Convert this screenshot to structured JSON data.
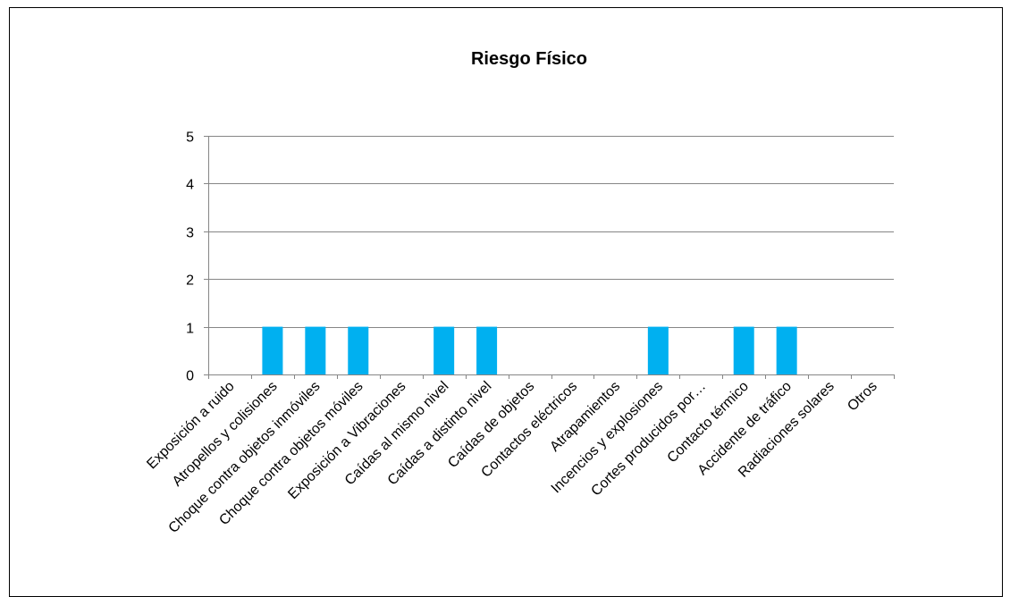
{
  "chart_data": {
    "type": "bar",
    "title": "Riesgo Físico",
    "xlabel": "",
    "ylabel": "",
    "ylim": [
      0,
      5
    ],
    "yticks": [
      0,
      1,
      2,
      3,
      4,
      5
    ],
    "grid": true,
    "legend": "none",
    "bar_color": "#00b0f0",
    "categories": [
      "Exposición a ruido",
      "Atropellos y colisiones",
      "Choque contra objetos inmóviles",
      "Choque contra objetos móviles",
      "Exposición a Vibraciones",
      "Caídas al mismo nivel",
      "Caídas a distinto nivel",
      "Caídas de objetos",
      "Contactos eléctricos",
      "Atrapamientos",
      "Incencios y explosiones",
      "Cortes producidos por…",
      "Contacto térmico",
      "Accidente de tráfico",
      "Radiaciones solares",
      "Otros"
    ],
    "values": [
      0,
      1,
      1,
      1,
      0,
      1,
      1,
      0,
      0,
      0,
      1,
      0,
      1,
      1,
      0,
      0
    ]
  }
}
